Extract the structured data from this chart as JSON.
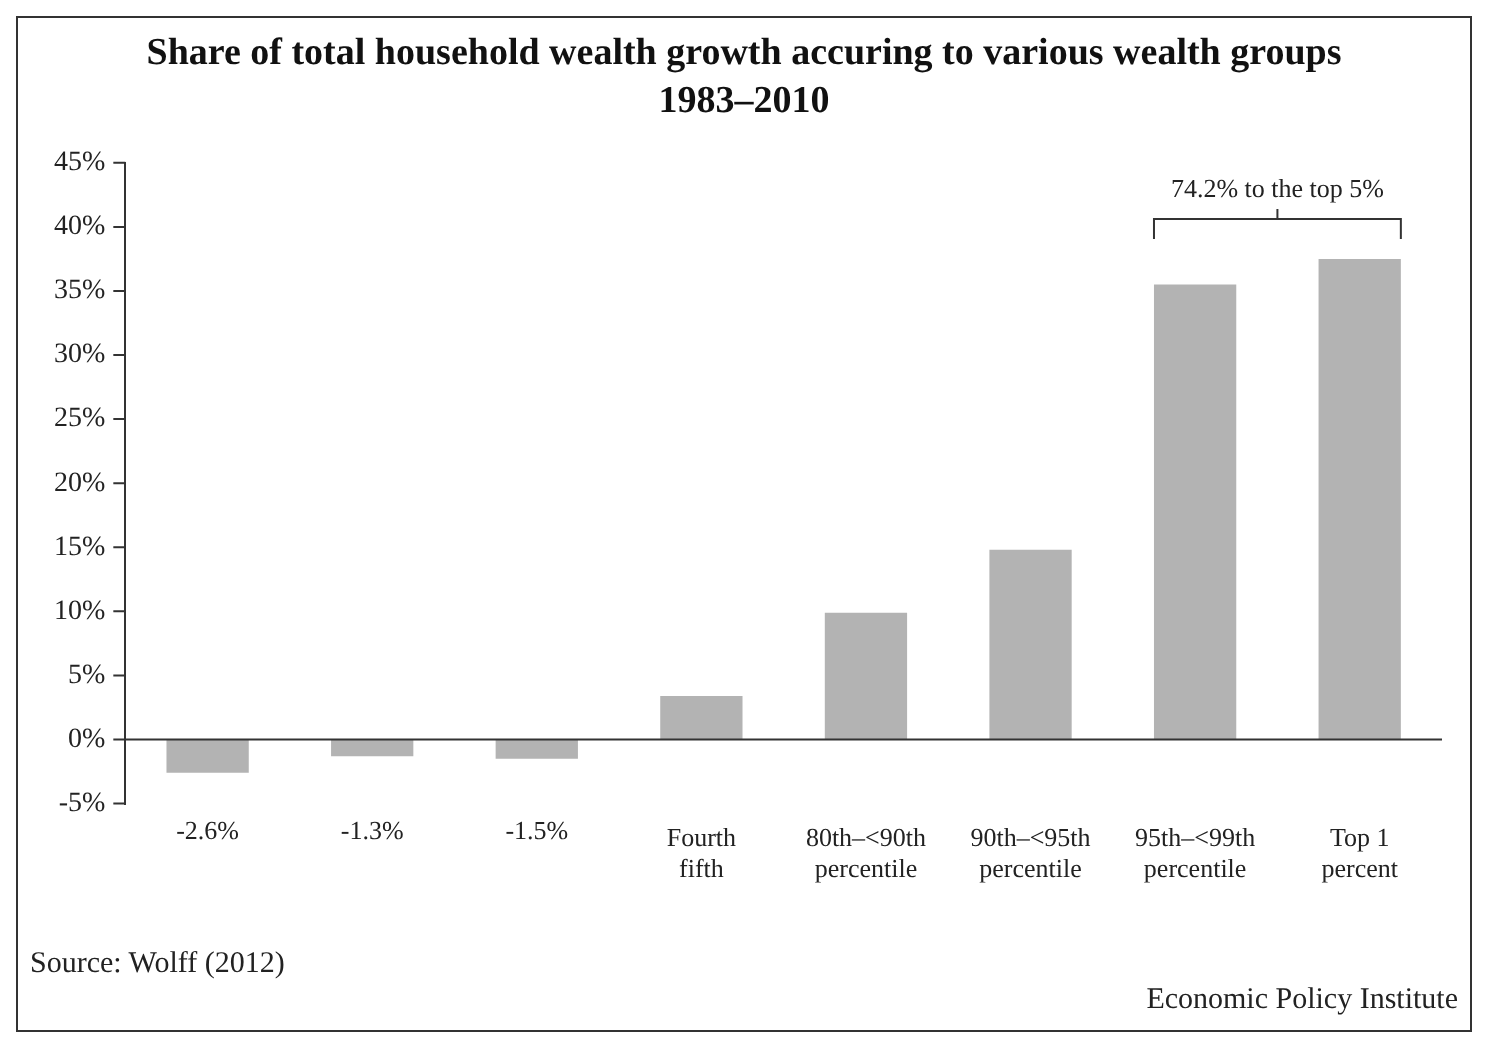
{
  "chart_data": {
    "type": "bar",
    "title": "Share of total household wealth growth accuring to various wealth groups\n1983–2010",
    "categories": [
      null,
      null,
      null,
      "Fourth\nfifth",
      "80th–<90th\npercentile",
      "90th–<95th\npercentile",
      "95th–<99th\npercentile",
      "Top 1\npercent"
    ],
    "values": [
      -2.6,
      -1.3,
      -1.5,
      3.4,
      9.9,
      14.8,
      35.5,
      37.5
    ],
    "value_labels": [
      "-2.6%",
      "-1.3%",
      "-1.5%",
      null,
      null,
      null,
      null,
      null
    ],
    "color": "#b3b3b3",
    "ylim": [
      -5,
      45
    ],
    "yticks": [
      {
        "value": -5,
        "label": "-5%"
      },
      {
        "value": 0,
        "label": "0%"
      },
      {
        "value": 5,
        "label": "5%"
      },
      {
        "value": 10,
        "label": "10%"
      },
      {
        "value": 15,
        "label": "15%"
      },
      {
        "value": 20,
        "label": "20%"
      },
      {
        "value": 25,
        "label": "25%"
      },
      {
        "value": 30,
        "label": "30%"
      },
      {
        "value": 35,
        "label": "35%"
      },
      {
        "value": 40,
        "label": "40%"
      },
      {
        "value": 45,
        "label": "45%"
      }
    ],
    "annotations": [
      {
        "text": "74.2% to the top 5%"
      },
      "Source: Wolff (2012)",
      "Economic Policy Institute"
    ]
  }
}
